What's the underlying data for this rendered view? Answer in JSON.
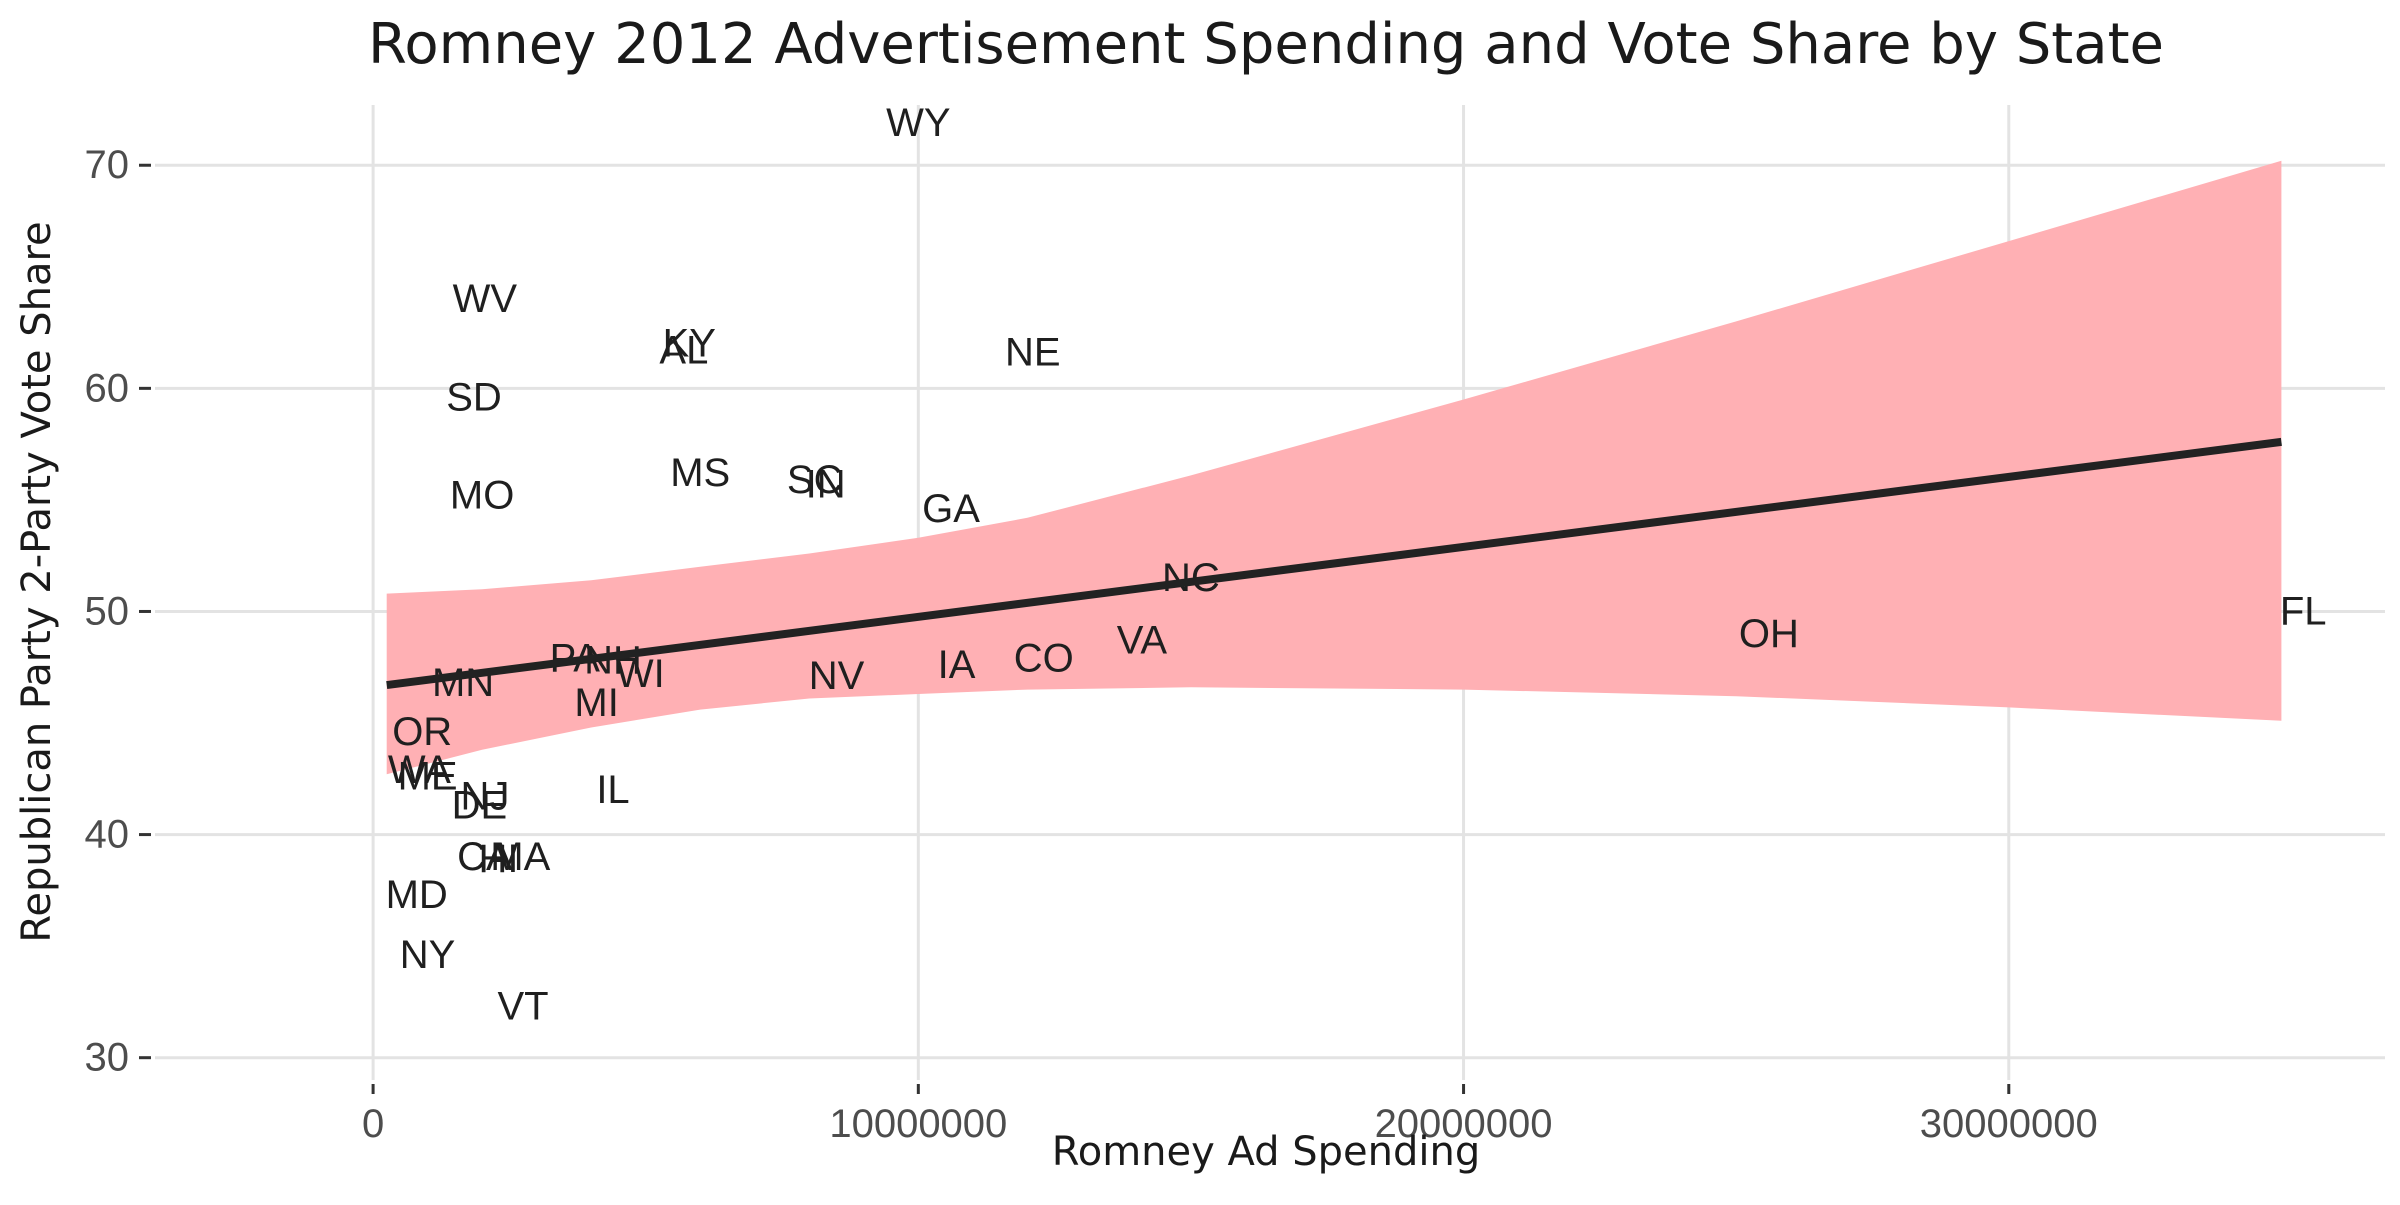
{
  "chart_data": {
    "type": "scatter",
    "title": "Romney 2012 Advertisement Spending and Vote Share by State",
    "xlabel": "Romney Ad Spending",
    "ylabel": "Republican Party 2-Party Vote Share",
    "xlim": [
      -4000000,
      36900000
    ],
    "ylim": [
      29,
      72.7
    ],
    "x_ticks": [
      0,
      10000000,
      20000000,
      30000000
    ],
    "x_tick_labels": [
      "0",
      "10000000",
      "20000000",
      "30000000"
    ],
    "y_ticks": [
      30,
      40,
      50,
      60,
      70
    ],
    "y_tick_labels": [
      "30",
      "40",
      "50",
      "60",
      "70"
    ],
    "grid": true,
    "legend": "none",
    "point_labels": [
      "WY",
      "WV",
      "KY",
      "AL",
      "NE",
      "SD",
      "MS",
      "SC",
      "IN",
      "MO",
      "GA",
      "NC",
      "FL",
      "OH",
      "VA",
      "CO",
      "IA",
      "NV",
      "PA",
      "NH",
      "WI",
      "MN",
      "MI",
      "OR",
      "WA",
      "ME",
      "IL",
      "NJ",
      "DE",
      "CA",
      "HI",
      "MA",
      "MD",
      "NY",
      "VT"
    ],
    "points": [
      {
        "label": "WY",
        "x": 10000000,
        "y": 71.9
      },
      {
        "label": "WV",
        "x": 2050000,
        "y": 64.0
      },
      {
        "label": "KY",
        "x": 5800000,
        "y": 62.0
      },
      {
        "label": "AL",
        "x": 5700000,
        "y": 61.7
      },
      {
        "label": "NE",
        "x": 12100000,
        "y": 61.6
      },
      {
        "label": "SD",
        "x": 1850000,
        "y": 59.6
      },
      {
        "label": "MS",
        "x": 6000000,
        "y": 56.2
      },
      {
        "label": "SC",
        "x": 8100000,
        "y": 55.9
      },
      {
        "label": "IN",
        "x": 8300000,
        "y": 55.7
      },
      {
        "label": "MO",
        "x": 2000000,
        "y": 55.2
      },
      {
        "label": "GA",
        "x": 10600000,
        "y": 54.6
      },
      {
        "label": "NC",
        "x": 15000000,
        "y": 51.5
      },
      {
        "label": "FL",
        "x": 35400000,
        "y": 50.0
      },
      {
        "label": "OH",
        "x": 25600000,
        "y": 49.0
      },
      {
        "label": "VA",
        "x": 14100000,
        "y": 48.7
      },
      {
        "label": "CO",
        "x": 12300000,
        "y": 47.9
      },
      {
        "label": "IA",
        "x": 10700000,
        "y": 47.6
      },
      {
        "label": "NV",
        "x": 8500000,
        "y": 47.1
      },
      {
        "label": "PA",
        "x": 3700000,
        "y": 47.9
      },
      {
        "label": "NH",
        "x": 4400000,
        "y": 47.8
      },
      {
        "label": "WI",
        "x": 4900000,
        "y": 47.2
      },
      {
        "label": "MN",
        "x": 1650000,
        "y": 46.8
      },
      {
        "label": "MI",
        "x": 4100000,
        "y": 45.9
      },
      {
        "label": "OR",
        "x": 900000,
        "y": 44.6
      },
      {
        "label": "WA",
        "x": 850000,
        "y": 42.9
      },
      {
        "label": "ME",
        "x": 1000000,
        "y": 42.6
      },
      {
        "label": "IL",
        "x": 4400000,
        "y": 42.0
      },
      {
        "label": "NJ",
        "x": 2050000,
        "y": 41.7
      },
      {
        "label": "DE",
        "x": 1950000,
        "y": 41.3
      },
      {
        "label": "CA",
        "x": 2050000,
        "y": 39.0
      },
      {
        "label": "HI",
        "x": 2300000,
        "y": 38.9
      },
      {
        "label": "MA",
        "x": 2700000,
        "y": 39.0
      },
      {
        "label": "MD",
        "x": 800000,
        "y": 37.3
      },
      {
        "label": "NY",
        "x": 1000000,
        "y": 34.6
      },
      {
        "label": "VT",
        "x": 2750000,
        "y": 32.3
      }
    ],
    "fit_line": {
      "method": "linear",
      "color": "#222222",
      "x": [
        250000,
        35000000
      ],
      "y": [
        46.7,
        57.6
      ]
    },
    "confidence_band": {
      "color": "#ffb0b4",
      "x": [
        250000,
        2000000,
        4000000,
        6000000,
        8000000,
        10000000,
        12000000,
        15000000,
        20000000,
        25000000,
        30000000,
        35000000
      ],
      "lower": [
        42.7,
        43.8,
        44.8,
        45.6,
        46.1,
        46.3,
        46.5,
        46.6,
        46.5,
        46.2,
        45.7,
        45.1
      ],
      "upper": [
        50.8,
        51.0,
        51.4,
        52.0,
        52.6,
        53.3,
        54.2,
        56.1,
        59.5,
        63.0,
        66.6,
        70.2
      ]
    }
  }
}
